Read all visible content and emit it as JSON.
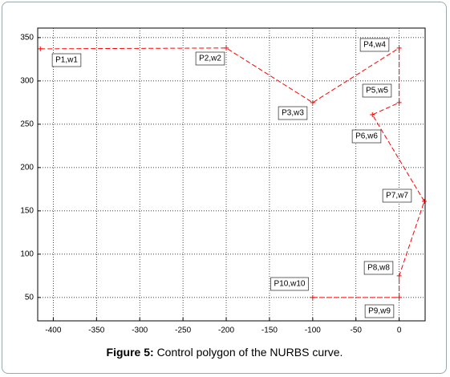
{
  "chart_data": {
    "type": "line",
    "title_prefix": "Figure 5:",
    "title": "Control polygon of the NURBS curve.",
    "x": [
      -415,
      -200,
      -100,
      0,
      0,
      -31,
      29,
      0,
      0,
      -100
    ],
    "values": [
      337,
      338,
      275,
      338,
      275,
      261,
      161,
      75,
      50,
      50
    ],
    "point_labels": [
      "P1,w1",
      "P2,w2",
      "P3,w3",
      "P4,w4",
      "P5,w5",
      "P6,w6",
      "P7,w7",
      "P8,w8",
      "P9,w9",
      "P10,w10"
    ],
    "color": "#ff0000",
    "xlim": [
      -418,
      30
    ],
    "ylim": [
      23,
      361
    ],
    "xticks": [
      -400,
      -350,
      -300,
      -250,
      -200,
      -150,
      -100,
      -50,
      0
    ],
    "yticks": [
      50,
      100,
      150,
      200,
      250,
      300,
      350
    ],
    "grid": true
  }
}
